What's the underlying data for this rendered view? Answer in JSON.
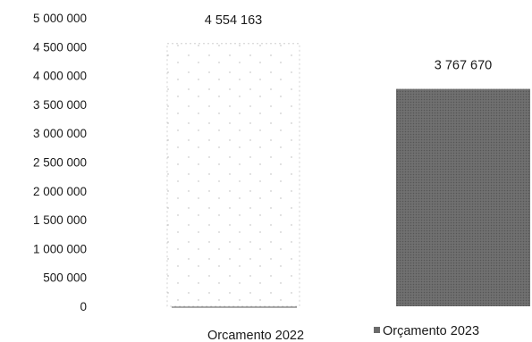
{
  "chart_data": {
    "type": "bar",
    "categories": [
      "Orcamento 2022",
      "Orçamento 2023"
    ],
    "values": [
      4554163,
      3767670
    ],
    "value_labels": [
      "4 554 163",
      "3 767 670"
    ],
    "ylim": [
      0,
      5000000
    ],
    "y_ticks": [
      {
        "value": 0,
        "label": "0"
      },
      {
        "value": 500000,
        "label": "500 000"
      },
      {
        "value": 1000000,
        "label": "1 000 000"
      },
      {
        "value": 1500000,
        "label": "1 500 000"
      },
      {
        "value": 2000000,
        "label": "2 000 000"
      },
      {
        "value": 2500000,
        "label": "2 500 000"
      },
      {
        "value": 3000000,
        "label": "3 000 000"
      },
      {
        "value": 3500000,
        "label": "3 500 000"
      },
      {
        "value": 4000000,
        "label": "4 000 000"
      },
      {
        "value": 4500000,
        "label": "4 500 000"
      },
      {
        "value": 5000000,
        "label": "5 000 000"
      }
    ],
    "legend": [
      {
        "label": "Orcamento 2022",
        "marker": false
      },
      {
        "label": "Orçamento 2023",
        "marker": true
      }
    ],
    "colors": {
      "bar_2022_fill": "#ffffff",
      "bar_2022_dots": "#b5b5b5",
      "bar_2023_fill": "#6b6b6b",
      "text": "#1a1a1a"
    },
    "grid": false,
    "legend_position": "bottom"
  }
}
